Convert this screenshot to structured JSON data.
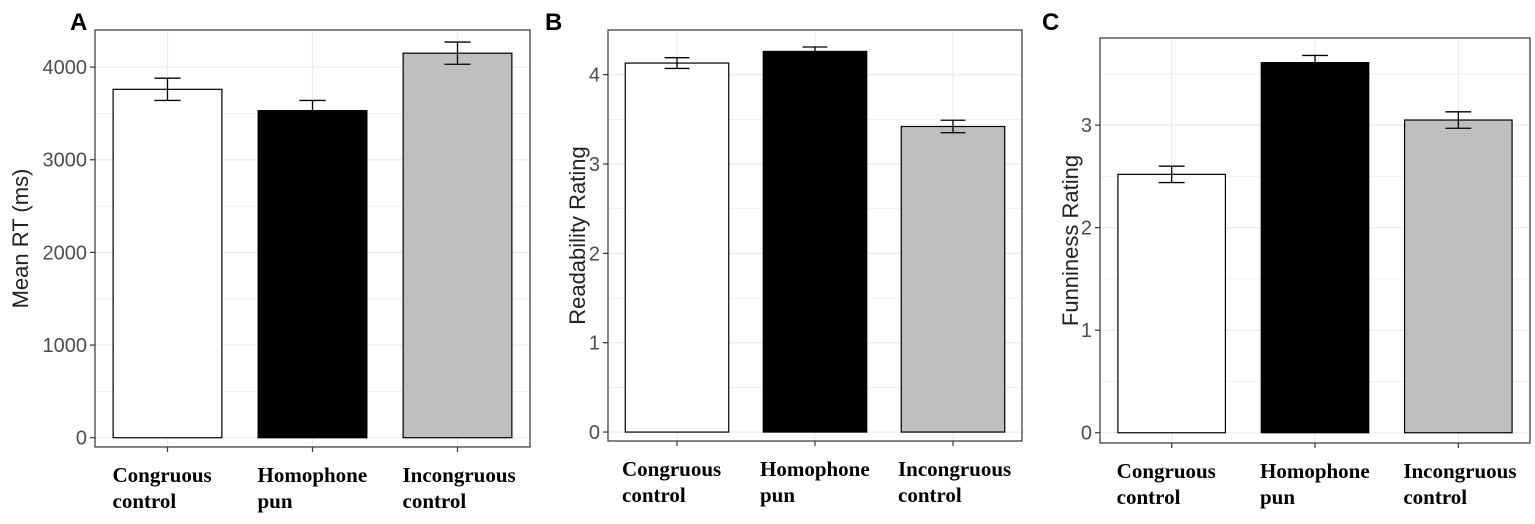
{
  "colors": {
    "congruous": "#ffffff",
    "homophone": "#000000",
    "incongruous": "#bfbfbf",
    "grid": "#ebebeb",
    "border": "#333333"
  },
  "chart_data": [
    {
      "type": "bar",
      "panel": "A",
      "ylabel": "Mean RT (ms)",
      "categories": [
        [
          "Congruous",
          "control"
        ],
        [
          "Homophone",
          "pun"
        ],
        [
          "Incongruous",
          "control"
        ]
      ],
      "values": [
        3760,
        3530,
        4150
      ],
      "errors": [
        120,
        110,
        120
      ],
      "ylim": [
        -100,
        4400
      ],
      "yticks": [
        0,
        1000,
        2000,
        3000,
        4000
      ],
      "grid": true,
      "legend": "none"
    },
    {
      "type": "bar",
      "panel": "B",
      "ylabel": "Readability Rating",
      "categories": [
        [
          "Congruous",
          "control"
        ],
        [
          "Homophone",
          "pun"
        ],
        [
          "Incongruous",
          "control"
        ]
      ],
      "values": [
        4.13,
        4.26,
        3.42
      ],
      "errors": [
        0.06,
        0.05,
        0.07
      ],
      "ylim": [
        -0.1,
        4.5
      ],
      "yticks": [
        0,
        1,
        2,
        3,
        4
      ],
      "grid": true,
      "legend": "none"
    },
    {
      "type": "bar",
      "panel": "C",
      "ylabel": "Funniness Rating",
      "categories": [
        [
          "Congruous",
          "control"
        ],
        [
          "Homophone",
          "pun"
        ],
        [
          "Incongruous",
          "control"
        ]
      ],
      "values": [
        2.52,
        3.61,
        3.05
      ],
      "errors": [
        0.08,
        0.07,
        0.08
      ],
      "ylim": [
        -0.1,
        3.85
      ],
      "yticks": [
        0,
        1,
        2,
        3
      ],
      "grid": true,
      "legend": "none"
    }
  ]
}
